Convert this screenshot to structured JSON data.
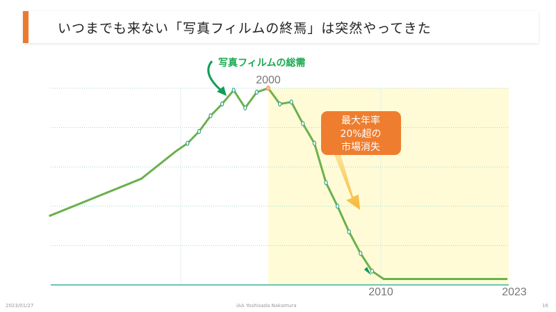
{
  "slide": {
    "title": "いつまでも来ない「写真フィルムの終焉」は突然やってきた",
    "date": "2023/01/27",
    "author": "iAA Yoshisada Nakamura",
    "page": "16"
  },
  "colors": {
    "accent": "#ec7a2e",
    "line": "#6ab04c",
    "marker": "#3aa58c",
    "shade": "#fffbd6",
    "label_green": "#1aa850",
    "callout": "#ee7d2f"
  },
  "chart_data": {
    "type": "line",
    "title": "",
    "xlabel": "",
    "ylabel": "",
    "grid": true,
    "x_tick_labels": [
      "2000",
      "2010",
      "2023"
    ],
    "series": [
      {
        "name": "写真フィルムの総需",
        "x": [
          1981,
          1989,
          1992,
          1993,
          1994,
          1995,
          1996,
          1997,
          1998,
          1999,
          2000,
          2001,
          2002,
          2003,
          2004,
          2005,
          2006,
          2007,
          2008,
          2009,
          2010,
          2023
        ],
        "values": [
          35,
          54,
          68,
          72,
          78,
          86,
          92,
          99,
          90,
          98,
          100,
          92,
          93,
          82,
          72,
          52,
          40,
          27,
          16,
          7,
          3,
          3
        ]
      }
    ],
    "ylim": [
      0,
      100
    ],
    "annotations": {
      "series_label": "写真フィルムの総需",
      "callout": [
        "最大年率",
        "20%超の",
        "市場消失"
      ],
      "shaded_from": 2000
    }
  }
}
